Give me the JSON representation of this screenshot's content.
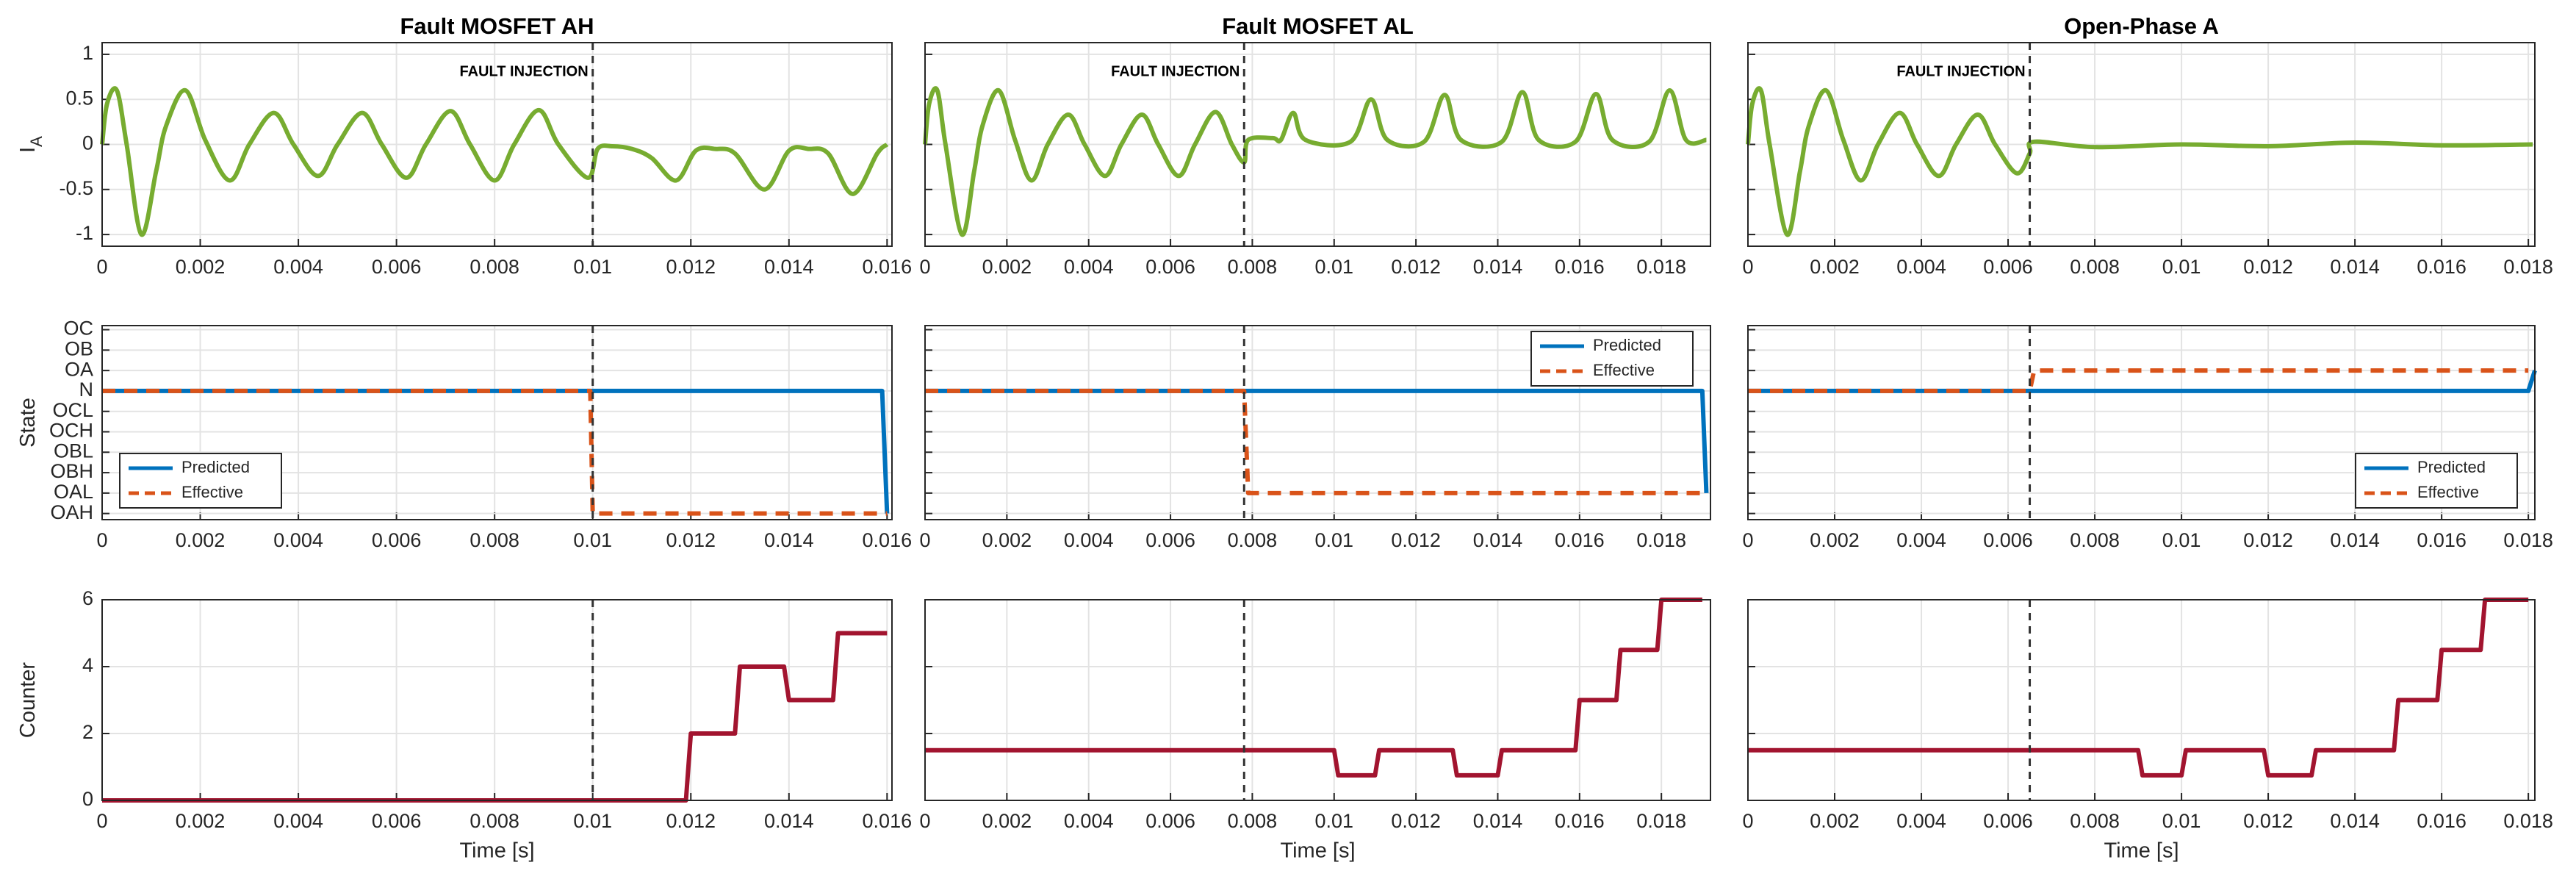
{
  "chart_data": [
    {
      "type": "line",
      "title": "Fault MOSFET AH",
      "ylabel": "I",
      "ylabel_subscript": "A",
      "annotation": "FAULT INJECTION",
      "fault_x": 0.01,
      "smooth": true,
      "grid": true,
      "ytick_labels": true,
      "xlim": [
        0,
        0.0161
      ],
      "xticks": [
        0,
        0.002,
        0.004,
        0.006,
        0.008,
        0.01,
        0.012,
        0.014,
        0.016
      ],
      "ylim": [
        -1.13,
        1.13
      ],
      "yticks": [
        -1,
        -0.5,
        0,
        0.5,
        1
      ],
      "series": [
        {
          "color": "#77ac30",
          "x": [
            0,
            0.0001,
            0.0003,
            0.0005,
            0.0008,
            0.0011,
            0.0013,
            0.0017,
            0.0021,
            0.0026,
            0.003,
            0.0035,
            0.0039,
            0.0044,
            0.0048,
            0.0053,
            0.0057,
            0.0062,
            0.0066,
            0.0071,
            0.0075,
            0.008,
            0.0084,
            0.0089,
            0.0093,
            0.0099,
            0.0101,
            0.0104,
            0.0108,
            0.0112,
            0.0117,
            0.0121,
            0.0125,
            0.0129,
            0.0135,
            0.014,
            0.0144,
            0.0148,
            0.0153,
            0.0158,
            0.016
          ],
          "values": [
            0,
            0.45,
            0.6,
            0,
            -1.0,
            -0.3,
            0.2,
            0.6,
            0.05,
            -0.4,
            0,
            0.35,
            0,
            -0.35,
            0,
            0.35,
            0,
            -0.37,
            0,
            0.37,
            0,
            -0.4,
            0,
            0.38,
            0,
            -0.37,
            -0.05,
            -0.02,
            -0.05,
            -0.15,
            -0.4,
            -0.07,
            -0.05,
            -0.1,
            -0.5,
            -0.07,
            -0.05,
            -0.1,
            -0.55,
            -0.1,
            0
          ]
        }
      ]
    },
    {
      "type": "line",
      "title": "Fault MOSFET AL",
      "annotation": "FAULT INJECTION",
      "fault_x": 0.0078,
      "smooth": true,
      "grid": true,
      "ytick_labels": false,
      "xlim": [
        0,
        0.0192
      ],
      "xticks": [
        0,
        0.002,
        0.004,
        0.006,
        0.008,
        0.01,
        0.012,
        0.014,
        0.016,
        0.018
      ],
      "ylim": [
        -1.13,
        1.13
      ],
      "yticks": [
        -1,
        -0.5,
        0,
        0.5,
        1
      ],
      "series": [
        {
          "color": "#77ac30",
          "x": [
            0,
            0.0001,
            0.0003,
            0.0005,
            0.0009,
            0.0012,
            0.0014,
            0.0018,
            0.0022,
            0.0026,
            0.003,
            0.0035,
            0.0039,
            0.0044,
            0.0048,
            0.0053,
            0.0057,
            0.0062,
            0.0066,
            0.0071,
            0.0075,
            0.0078,
            0.0079,
            0.0085,
            0.0087,
            0.009,
            0.0093,
            0.0104,
            0.0109,
            0.0113,
            0.0122,
            0.0127,
            0.0131,
            0.0141,
            0.0146,
            0.015,
            0.0159,
            0.0164,
            0.0168,
            0.0177,
            0.0182,
            0.0186,
            0.0191
          ],
          "values": [
            0,
            0.45,
            0.6,
            0,
            -1.0,
            -0.3,
            0.2,
            0.6,
            0.05,
            -0.4,
            0,
            0.33,
            0,
            -0.35,
            0,
            0.33,
            0,
            -0.35,
            0,
            0.36,
            0,
            -0.2,
            0.05,
            0.07,
            0.05,
            0.35,
            0.05,
            0.03,
            0.5,
            0.05,
            0.03,
            0.55,
            0.05,
            0.03,
            0.58,
            0.05,
            0.03,
            0.56,
            0.05,
            0.03,
            0.6,
            0.05,
            0.05
          ]
        }
      ]
    },
    {
      "type": "line",
      "title": "Open-Phase A",
      "annotation": "FAULT INJECTION",
      "fault_x": 0.0065,
      "smooth": true,
      "grid": true,
      "ytick_labels": false,
      "xlim": [
        0,
        0.01815
      ],
      "xticks": [
        0,
        0.002,
        0.004,
        0.006,
        0.008,
        0.01,
        0.012,
        0.014,
        0.016,
        0.018
      ],
      "ylim": [
        -1.13,
        1.13
      ],
      "yticks": [
        -1,
        -0.5,
        0,
        0.5,
        1
      ],
      "series": [
        {
          "color": "#77ac30",
          "x": [
            0,
            0.0001,
            0.0003,
            0.0005,
            0.0009,
            0.0012,
            0.0014,
            0.0018,
            0.0022,
            0.0026,
            0.003,
            0.0035,
            0.0039,
            0.0044,
            0.0048,
            0.0053,
            0.0057,
            0.0062,
            0.0065,
            0.0066,
            0.008,
            0.01,
            0.012,
            0.014,
            0.016,
            0.0181
          ],
          "values": [
            0,
            0.45,
            0.6,
            0,
            -1.0,
            -0.3,
            0.2,
            0.6,
            0.05,
            -0.4,
            0,
            0.35,
            0,
            -0.35,
            0,
            0.33,
            0,
            -0.32,
            -0.1,
            0.03,
            -0.03,
            0,
            -0.02,
            0.02,
            -0.01,
            0
          ]
        }
      ]
    },
    {
      "type": "line",
      "ylabel": "State",
      "fault_x": 0.01,
      "grid": true,
      "ytick_labels": true,
      "legend": "lower left",
      "xlim": [
        0,
        0.0161
      ],
      "xticks": [
        0,
        0.002,
        0.004,
        0.006,
        0.008,
        0.01,
        0.012,
        0.014,
        0.016
      ],
      "ycategories": [
        "OAH",
        "OAL",
        "OBH",
        "OBL",
        "OCH",
        "OCL",
        "N",
        "OA",
        "OB",
        "OC"
      ],
      "series": [
        {
          "name": "Predicted",
          "color": "#0072bd",
          "x": [
            0,
            0.0159,
            0.016
          ],
          "values": [
            "N",
            "N",
            "OAH"
          ]
        },
        {
          "name": "Effective",
          "color": "#d95319",
          "dashed": true,
          "x": [
            0,
            0.00995,
            0.01,
            0.016
          ],
          "values": [
            "N",
            "N",
            "OAH",
            "OAH"
          ]
        }
      ]
    },
    {
      "type": "line",
      "fault_x": 0.0078,
      "grid": true,
      "ytick_labels": false,
      "legend": "upper right",
      "xlim": [
        0,
        0.0192
      ],
      "xticks": [
        0,
        0.002,
        0.004,
        0.006,
        0.008,
        0.01,
        0.012,
        0.014,
        0.016,
        0.018
      ],
      "ycategories": [
        "OAH",
        "OAL",
        "OBH",
        "OBL",
        "OCH",
        "OCL",
        "N",
        "OA",
        "OB",
        "OC"
      ],
      "series": [
        {
          "name": "Predicted",
          "color": "#0072bd",
          "x": [
            0,
            0.019,
            0.0191
          ],
          "values": [
            "N",
            "N",
            "OAL"
          ]
        },
        {
          "name": "Effective",
          "color": "#d95319",
          "dashed": true,
          "x": [
            0,
            0.0078,
            0.0079,
            0.019
          ],
          "values": [
            "N",
            "N",
            "OAL",
            "OAL"
          ]
        }
      ]
    },
    {
      "type": "line",
      "fault_x": 0.0065,
      "grid": true,
      "ytick_labels": false,
      "legend": "lower right",
      "xlim": [
        0,
        0.01815
      ],
      "xticks": [
        0,
        0.002,
        0.004,
        0.006,
        0.008,
        0.01,
        0.012,
        0.014,
        0.016,
        0.018
      ],
      "ycategories": [
        "OAH",
        "OAL",
        "OBH",
        "OBL",
        "OCH",
        "OCL",
        "N",
        "OA",
        "OB",
        "OC"
      ],
      "series": [
        {
          "name": "Predicted",
          "color": "#0072bd",
          "x": [
            0,
            0.018,
            0.01815
          ],
          "values": [
            "N",
            "N",
            "OA"
          ]
        },
        {
          "name": "Effective",
          "color": "#d95319",
          "dashed": true,
          "x": [
            0,
            0.0065,
            0.0066,
            0.018
          ],
          "values": [
            "N",
            "N",
            "OA",
            "OA"
          ]
        }
      ]
    },
    {
      "type": "line",
      "ylabel": "Counter",
      "xlabel": "Time [s]",
      "fault_x": 0.01,
      "grid": true,
      "ytick_labels": true,
      "xlim": [
        0,
        0.0161
      ],
      "xticks": [
        0,
        0.002,
        0.004,
        0.006,
        0.008,
        0.01,
        0.012,
        0.014,
        0.016
      ],
      "ylim": [
        0,
        6
      ],
      "yticks": [
        0,
        2,
        4,
        6
      ],
      "series": [
        {
          "color": "#a2142f",
          "x": [
            0,
            0.0119,
            0.012,
            0.0129,
            0.013,
            0.0139,
            0.014,
            0.0149,
            0.015,
            0.016
          ],
          "values": [
            0,
            0,
            2,
            2,
            4,
            4,
            3,
            3,
            5,
            5
          ]
        }
      ]
    },
    {
      "type": "line",
      "xlabel": "Time [s]",
      "fault_x": 0.0078,
      "grid": true,
      "ytick_labels": false,
      "xlim": [
        0,
        0.0192
      ],
      "xticks": [
        0,
        0.002,
        0.004,
        0.006,
        0.008,
        0.01,
        0.012,
        0.014,
        0.016,
        0.018
      ],
      "ylim": [
        0,
        6
      ],
      "yticks": [
        0,
        2,
        4,
        6
      ],
      "series": [
        {
          "color": "#a2142f",
          "x": [
            0,
            0.01,
            0.0101,
            0.011,
            0.0111,
            0.0129,
            0.013,
            0.014,
            0.0141,
            0.0159,
            0.016,
            0.0169,
            0.017,
            0.0179,
            0.018,
            0.019
          ],
          "values": [
            1.5,
            1.5,
            0.75,
            0.75,
            1.5,
            1.5,
            0.75,
            0.75,
            1.5,
            1.5,
            3,
            3,
            4.5,
            4.5,
            6,
            6
          ]
        }
      ]
    },
    {
      "type": "line",
      "xlabel": "Time [s]",
      "fault_x": 0.0065,
      "grid": true,
      "ytick_labels": false,
      "xlim": [
        0,
        0.01815
      ],
      "xticks": [
        0,
        0.002,
        0.004,
        0.006,
        0.008,
        0.01,
        0.012,
        0.014,
        0.016,
        0.018
      ],
      "ylim": [
        0,
        6
      ],
      "yticks": [
        0,
        2,
        4,
        6
      ],
      "series": [
        {
          "color": "#a2142f",
          "x": [
            0,
            0.009,
            0.0091,
            0.01,
            0.0101,
            0.0119,
            0.012,
            0.013,
            0.0131,
            0.0149,
            0.015,
            0.0159,
            0.016,
            0.0169,
            0.017,
            0.018
          ],
          "values": [
            1.5,
            1.5,
            0.75,
            0.75,
            1.5,
            1.5,
            0.75,
            0.75,
            1.5,
            1.5,
            3,
            3,
            4.5,
            4.5,
            6,
            6
          ]
        }
      ]
    }
  ]
}
